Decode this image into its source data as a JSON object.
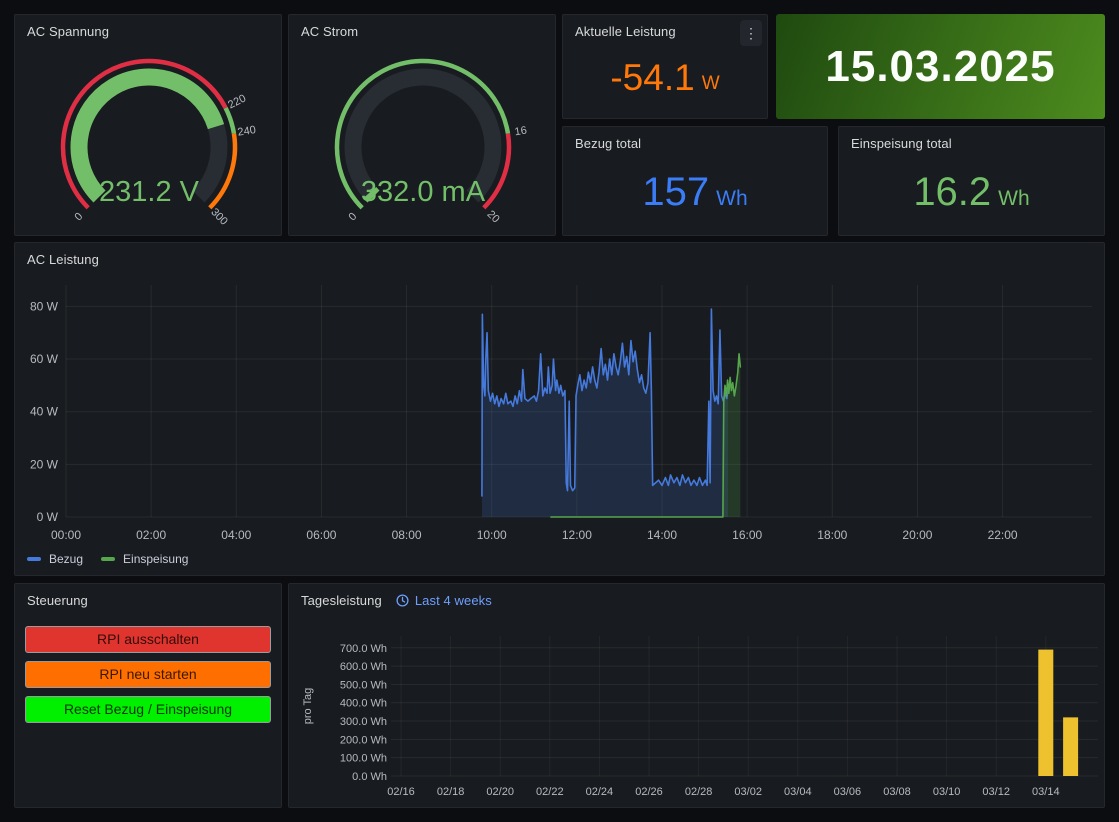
{
  "colors": {
    "green": "#73BF69",
    "blue_stat": "#3B7DF7",
    "orange": "#FF780A",
    "red": "#E02F44",
    "line_blue": "#4579DB",
    "line_green": "#56A64B",
    "bar_yellow": "#EEC22E",
    "gauge_track": "#282c33",
    "axis_text": "#b7bac0",
    "grid": "rgba(255,255,255,0.07)"
  },
  "panels": {
    "ac_spannung": {
      "title": "AC Spannung",
      "gauge": {
        "min": 0,
        "max": 300,
        "value": 231.2,
        "display": "231.2 V",
        "value_color": "#73BF69",
        "track_color": "#282c33",
        "segments": [
          {
            "from": 0,
            "to": 220,
            "color": "#E02F44"
          },
          {
            "from": 220,
            "to": 240,
            "color": "#73BF69"
          },
          {
            "from": 240,
            "to": 300,
            "color": "#FF780A"
          }
        ],
        "scale_labels": [
          {
            "at": 0,
            "text": "0"
          },
          {
            "at": 220,
            "text": "220"
          },
          {
            "at": 240,
            "text": "240"
          },
          {
            "at": 300,
            "text": "300"
          }
        ]
      }
    },
    "ac_strom": {
      "title": "AC Strom",
      "gauge": {
        "min": 0,
        "max": 20,
        "value": 0.332,
        "display": "332.0 mA",
        "value_color": "#73BF69",
        "track_color": "#282c33",
        "segments": [
          {
            "from": 0,
            "to": 16,
            "color": "#73BF69"
          },
          {
            "from": 16,
            "to": 20,
            "color": "#E02F44"
          }
        ],
        "scale_labels": [
          {
            "at": 0,
            "text": "0"
          },
          {
            "at": 16,
            "text": "16"
          },
          {
            "at": 20,
            "text": "20"
          }
        ]
      }
    },
    "aktuelle_leistung": {
      "title": "Aktuelle Leistung",
      "value": "-54.1",
      "unit": "W",
      "color": "#FF780A",
      "menu_icon": "⋮"
    },
    "datum": {
      "value": "15.03.2025",
      "bg_from": "#1f4a10",
      "bg_to": "#4d8c1e"
    },
    "bezug_total": {
      "title": "Bezug total",
      "value": "157",
      "unit": "Wh",
      "color": "#3B7DF7"
    },
    "einspeisung_total": {
      "title": "Einspeisung total",
      "value": "16.2",
      "unit": "Wh",
      "color": "#73BF69"
    },
    "ac_leistung": {
      "title": "AC Leistung"
    },
    "steuerung": {
      "title": "Steuerung",
      "buttons": [
        {
          "label": "RPI ausschalten",
          "color": "#E0342F"
        },
        {
          "label": "RPI neu starten",
          "color": "#FF6F00"
        },
        {
          "label": "Reset Bezug / Einspeisung",
          "color": "#00F000"
        }
      ]
    },
    "tagesleistung": {
      "title": "Tagesleistung",
      "timerange_label": "Last 4 weeks"
    }
  },
  "chart_data": [
    {
      "type": "line",
      "title": "AC Leistung",
      "xlabel": "",
      "ylabel": "",
      "xlim_hours": [
        0,
        24.1
      ],
      "ylim": [
        0,
        86.6
      ],
      "grid": true,
      "legend_position": "bottom-left",
      "yticks": [
        {
          "v": 0,
          "label": "0 W"
        },
        {
          "v": 20,
          "label": "20 W"
        },
        {
          "v": 40,
          "label": "40 W"
        },
        {
          "v": 60,
          "label": "60 W"
        },
        {
          "v": 80,
          "label": "80 W"
        }
      ],
      "xticks": [
        {
          "h": 0,
          "label": "00:00"
        },
        {
          "h": 2,
          "label": "02:00"
        },
        {
          "h": 4,
          "label": "04:00"
        },
        {
          "h": 6,
          "label": "06:00"
        },
        {
          "h": 8,
          "label": "08:00"
        },
        {
          "h": 10,
          "label": "10:00"
        },
        {
          "h": 12,
          "label": "12:00"
        },
        {
          "h": 14,
          "label": "14:00"
        },
        {
          "h": 16,
          "label": "16:00"
        },
        {
          "h": 18,
          "label": "18:00"
        },
        {
          "h": 20,
          "label": "20:00"
        },
        {
          "h": 22,
          "label": "22:00"
        }
      ],
      "series": [
        {
          "name": "Bezug",
          "color": "#4579DB",
          "fill_opacity": 0.18,
          "points": [
            [
              9.77,
              8
            ],
            [
              9.78,
              77
            ],
            [
              9.81,
              50
            ],
            [
              9.84,
              46
            ],
            [
              9.86,
              60
            ],
            [
              9.89,
              70
            ],
            [
              9.92,
              48
            ],
            [
              9.97,
              44
            ],
            [
              10.02,
              47
            ],
            [
              10.07,
              43
            ],
            [
              10.12,
              46
            ],
            [
              10.17,
              42
            ],
            [
              10.22,
              45
            ],
            [
              10.28,
              43
            ],
            [
              10.33,
              47
            ],
            [
              10.38,
              43
            ],
            [
              10.45,
              44
            ],
            [
              10.5,
              42
            ],
            [
              10.55,
              46
            ],
            [
              10.6,
              43
            ],
            [
              10.65,
              48
            ],
            [
              10.7,
              44
            ],
            [
              10.73,
              56
            ],
            [
              10.78,
              45
            ],
            [
              10.85,
              44
            ],
            [
              10.92,
              45
            ],
            [
              11.0,
              46
            ],
            [
              11.05,
              44
            ],
            [
              11.1,
              48
            ],
            [
              11.15,
              62
            ],
            [
              11.2,
              46
            ],
            [
              11.25,
              49
            ],
            [
              11.3,
              47
            ],
            [
              11.33,
              57
            ],
            [
              11.37,
              47
            ],
            [
              11.42,
              50
            ],
            [
              11.45,
              60
            ],
            [
              11.5,
              48
            ],
            [
              11.53,
              52
            ],
            [
              11.58,
              47
            ],
            [
              11.62,
              50
            ],
            [
              11.67,
              46
            ],
            [
              11.72,
              48
            ],
            [
              11.75,
              13
            ],
            [
              11.78,
              10
            ],
            [
              11.82,
              44
            ],
            [
              11.85,
              12
            ],
            [
              11.9,
              10
            ],
            [
              11.95,
              11
            ],
            [
              11.98,
              46
            ],
            [
              12.02,
              50
            ],
            [
              12.07,
              54
            ],
            [
              12.12,
              48
            ],
            [
              12.17,
              52
            ],
            [
              12.22,
              49
            ],
            [
              12.27,
              55
            ],
            [
              12.32,
              51
            ],
            [
              12.37,
              57
            ],
            [
              12.42,
              52
            ],
            [
              12.47,
              49
            ],
            [
              12.52,
              55
            ],
            [
              12.57,
              64
            ],
            [
              12.62,
              54
            ],
            [
              12.67,
              58
            ],
            [
              12.72,
              52
            ],
            [
              12.77,
              60
            ],
            [
              12.82,
              54
            ],
            [
              12.87,
              62
            ],
            [
              12.92,
              57
            ],
            [
              12.97,
              54
            ],
            [
              13.02,
              59
            ],
            [
              13.07,
              66
            ],
            [
              13.12,
              57
            ],
            [
              13.17,
              61
            ],
            [
              13.22,
              54
            ],
            [
              13.27,
              67
            ],
            [
              13.32,
              59
            ],
            [
              13.37,
              63
            ],
            [
              13.42,
              56
            ],
            [
              13.47,
              51
            ],
            [
              13.52,
              54
            ],
            [
              13.57,
              49
            ],
            [
              13.62,
              47
            ],
            [
              13.67,
              51
            ],
            [
              13.72,
              70
            ],
            [
              13.75,
              48
            ],
            [
              13.78,
              12
            ],
            [
              13.85,
              13
            ],
            [
              13.92,
              14
            ],
            [
              14.0,
              12
            ],
            [
              14.08,
              15
            ],
            [
              14.15,
              12
            ],
            [
              14.2,
              16
            ],
            [
              14.28,
              13
            ],
            [
              14.35,
              15
            ],
            [
              14.42,
              12
            ],
            [
              14.48,
              16
            ],
            [
              14.55,
              13
            ],
            [
              14.62,
              15
            ],
            [
              14.68,
              12
            ],
            [
              14.75,
              14
            ],
            [
              14.82,
              12
            ],
            [
              14.88,
              15
            ],
            [
              14.95,
              12
            ],
            [
              15.02,
              14
            ],
            [
              15.06,
              12
            ],
            [
              15.1,
              44
            ],
            [
              15.13,
              13
            ],
            [
              15.16,
              79
            ],
            [
              15.2,
              48
            ],
            [
              15.24,
              44
            ],
            [
              15.28,
              46
            ],
            [
              15.32,
              43
            ],
            [
              15.36,
              71
            ],
            [
              15.4,
              46
            ],
            [
              15.44,
              44
            ],
            [
              15.48,
              47
            ],
            [
              15.52,
              45
            ],
            [
              15.55,
              48
            ]
          ]
        },
        {
          "name": "Einspeisung",
          "color": "#56A64B",
          "fill_opacity": 0.22,
          "points": [
            [
              11.39,
              0
            ],
            [
              15.43,
              0
            ],
            [
              15.45,
              44
            ],
            [
              15.48,
              50
            ],
            [
              15.51,
              46
            ],
            [
              15.54,
              52
            ],
            [
              15.57,
              47
            ],
            [
              15.6,
              53
            ],
            [
              15.63,
              48
            ],
            [
              15.66,
              51
            ],
            [
              15.7,
              46
            ],
            [
              15.74,
              50
            ],
            [
              15.78,
              55
            ],
            [
              15.81,
              62
            ],
            [
              15.84,
              57
            ]
          ]
        }
      ]
    },
    {
      "type": "bar",
      "title": "Tagesleistung",
      "timerange": "Last 4 weeks",
      "xlabel": "",
      "ylabel": "pro Tag",
      "ylim": [
        0,
        780
      ],
      "grid": true,
      "bar_color": "#EEC22E",
      "yticks": [
        {
          "v": 0,
          "label": "0.0 Wh"
        },
        {
          "v": 100,
          "label": "100.0 Wh"
        },
        {
          "v": 200,
          "label": "200.0 Wh"
        },
        {
          "v": 300,
          "label": "300.0 Wh"
        },
        {
          "v": 400,
          "label": "400.0 Wh"
        },
        {
          "v": 500,
          "label": "500.0 Wh"
        },
        {
          "v": 600,
          "label": "600.0 Wh"
        },
        {
          "v": 700,
          "label": "700.0 Wh"
        }
      ],
      "xticks": [
        {
          "d": 0,
          "label": "02/16"
        },
        {
          "d": 2,
          "label": "02/18"
        },
        {
          "d": 4,
          "label": "02/20"
        },
        {
          "d": 6,
          "label": "02/22"
        },
        {
          "d": 8,
          "label": "02/24"
        },
        {
          "d": 10,
          "label": "02/26"
        },
        {
          "d": 12,
          "label": "02/28"
        },
        {
          "d": 14,
          "label": "03/02"
        },
        {
          "d": 16,
          "label": "03/04"
        },
        {
          "d": 18,
          "label": "03/06"
        },
        {
          "d": 20,
          "label": "03/08"
        },
        {
          "d": 22,
          "label": "03/10"
        },
        {
          "d": 24,
          "label": "03/12"
        },
        {
          "d": 26,
          "label": "03/14"
        }
      ],
      "bars": [
        {
          "date": "03/14",
          "day_index": 26,
          "value": 690
        },
        {
          "date": "03/15",
          "day_index": 27,
          "value": 320
        }
      ]
    }
  ]
}
